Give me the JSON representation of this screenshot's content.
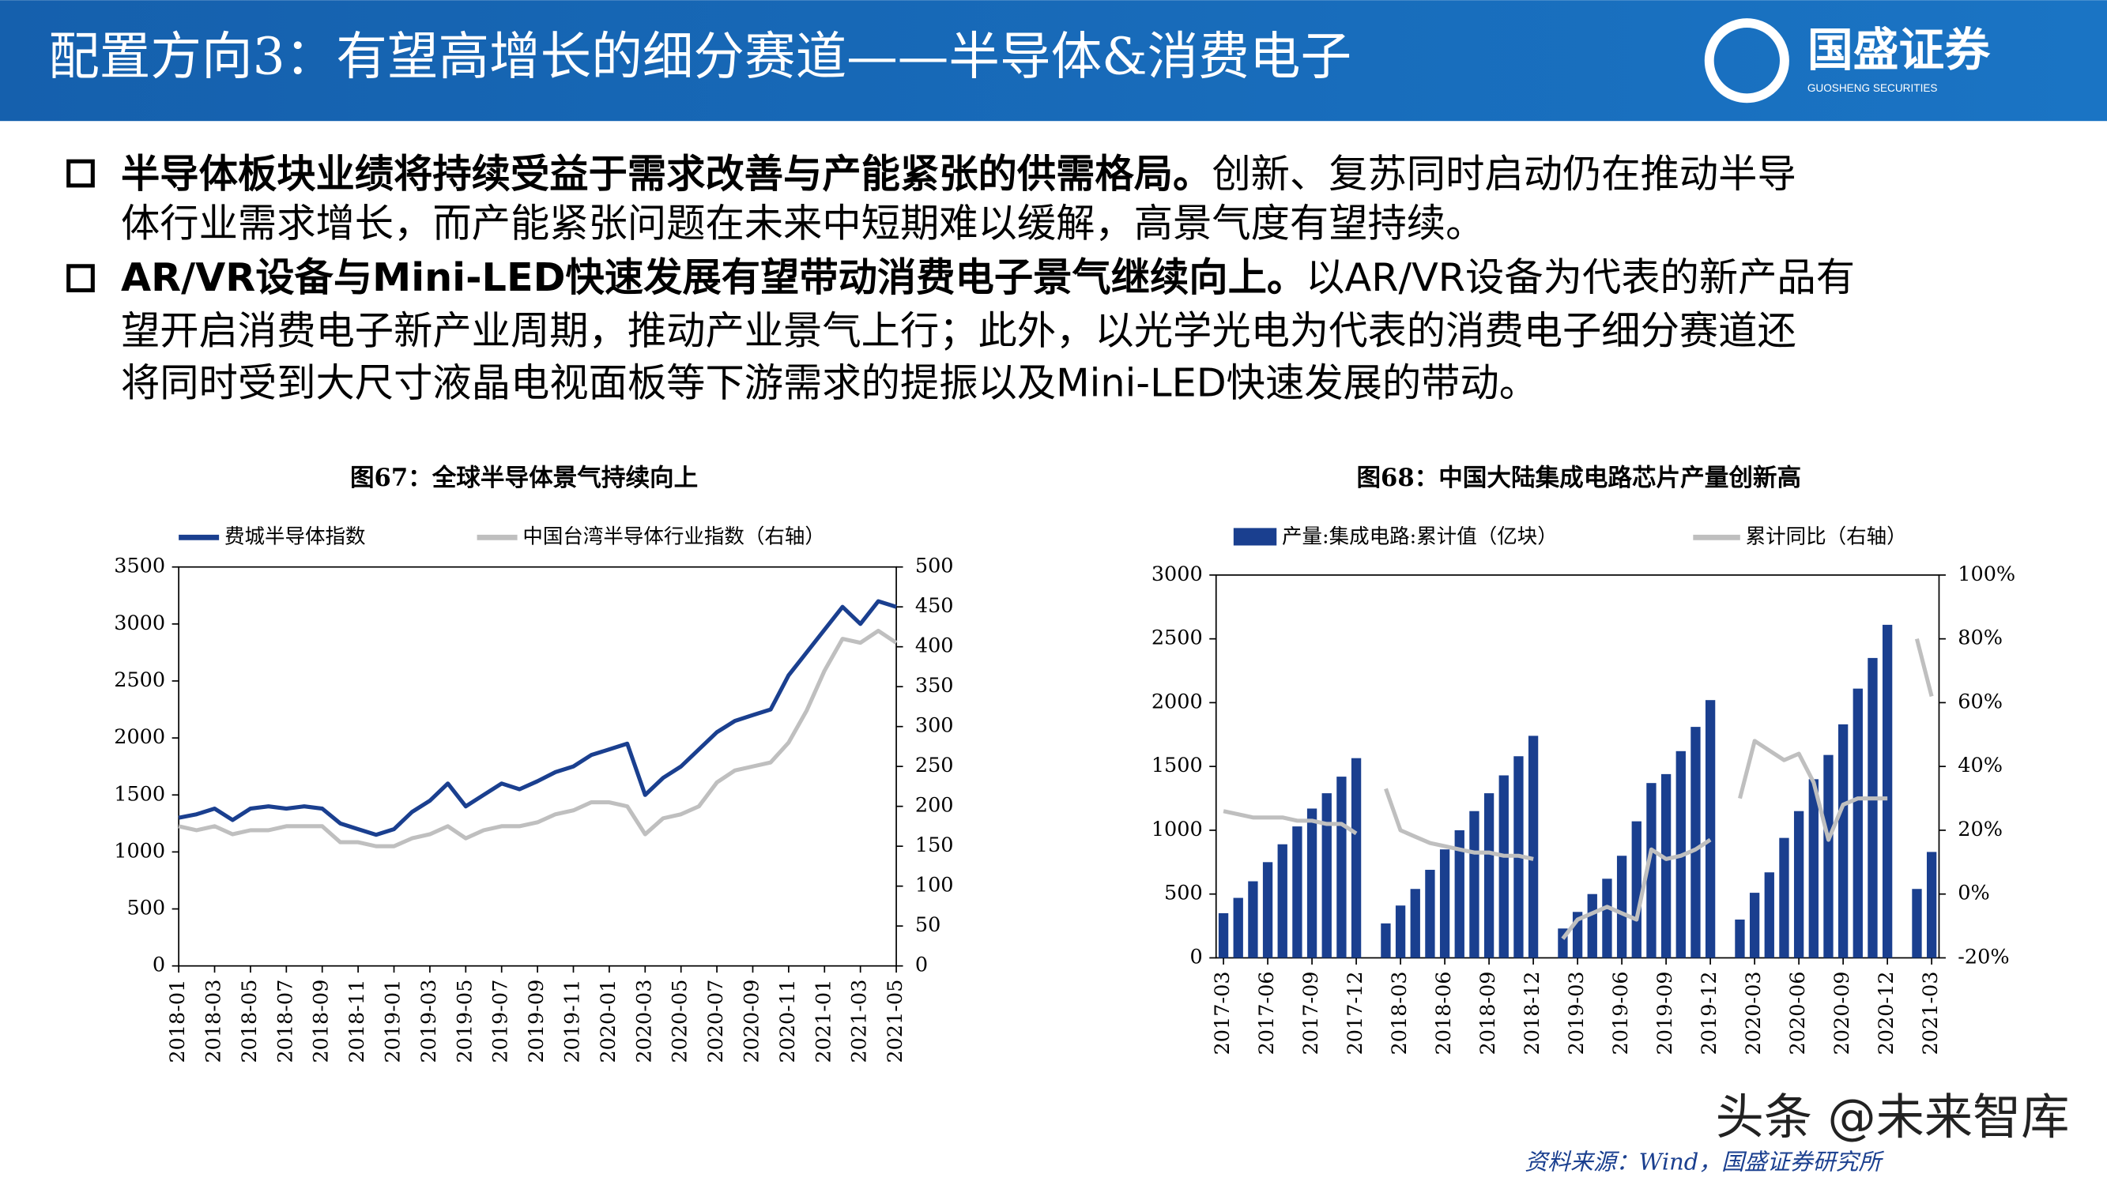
{
  "header": {
    "title": "配置方向3：有望高增长的细分赛道——半导体&消费电子",
    "logo": "国盛证券",
    "logo_en": "GUOSHENG SECURITIES"
  },
  "bullets": [
    {
      "lead": "半导体板块业绩将持续受益于需求改善与产能紧张的供需格局。",
      "lines": [
        "创新、复苏同时启动仍在推动半导",
        "体行业需求增长，而产能紧张问题在未来中短期难以缓解，高景气度有望持续。"
      ]
    },
    {
      "lead": "AR/VR设备与Mini-LED快速发展有望带动消费电子景气继续向上。",
      "lines": [
        "以AR/VR设备为代表的新产品有",
        "望开启消费电子新产业周期，推动产业景气上行；此外，以光学光电为代表的消费电子细分赛道还",
        "将同时受到大尺寸液晶电视面板等下游需求的提振以及Mini-LED快速发展的带动。"
      ]
    }
  ],
  "chart_data": [
    {
      "type": "line",
      "title": "图67：全球半导体景气持续向上",
      "categories": [
        "2018-01",
        null,
        "2018-03",
        null,
        "2018-05",
        null,
        "2018-07",
        null,
        "2018-09",
        null,
        "2018-11",
        null,
        "2019-01",
        null,
        "2019-03",
        null,
        "2019-05",
        null,
        "2019-07",
        null,
        "2019-09",
        null,
        "2019-11",
        null,
        "2020-01",
        null,
        "2020-03",
        null,
        "2020-05",
        null,
        "2020-07",
        null,
        "2020-09",
        null,
        "2020-11",
        null,
        "2021-01",
        null,
        "2021-03",
        null,
        "2021-05"
      ],
      "series": [
        {
          "name": "费城半导体指数",
          "color": "#1a3f8f",
          "values": [
            1300,
            1330,
            1380,
            1280,
            1380,
            1400,
            1380,
            1400,
            1380,
            1250,
            1200,
            1150,
            1200,
            1350,
            1450,
            1600,
            1400,
            1500,
            1600,
            1550,
            1620,
            1700,
            1750,
            1850,
            1900,
            1950,
            1500,
            1650,
            1750,
            1900,
            2050,
            2150,
            2200,
            2250,
            2550,
            2750,
            2950,
            3150,
            3000,
            3200,
            3150
          ]
        },
        {
          "name": "中国台湾半导体行业指数（右轴）",
          "color": "#bfbfbf",
          "axis": "y2",
          "values": [
            175,
            170,
            175,
            165,
            170,
            170,
            175,
            175,
            175,
            155,
            155,
            150,
            150,
            160,
            165,
            175,
            160,
            170,
            175,
            175,
            180,
            190,
            195,
            205,
            205,
            200,
            165,
            185,
            190,
            200,
            230,
            245,
            250,
            255,
            280,
            320,
            370,
            410,
            405,
            420,
            405
          ]
        }
      ],
      "ylim": [
        0,
        3500
      ],
      "yticks": [
        0,
        500,
        1000,
        1500,
        2000,
        2500,
        3000,
        3500
      ],
      "y2lim": [
        0,
        500
      ],
      "y2ticks": [
        0,
        50,
        100,
        150,
        200,
        250,
        300,
        350,
        400,
        450,
        500
      ]
    },
    {
      "type": "bar",
      "title": "图68：中国大陆集成电路芯片产量创新高",
      "categories": [
        "2017-03",
        null,
        null,
        "2017-06",
        null,
        null,
        "2017-09",
        null,
        null,
        "2017-12",
        null,
        null,
        "2018-03",
        null,
        null,
        "2018-06",
        null,
        null,
        "2018-09",
        null,
        null,
        "2018-12",
        null,
        null,
        "2019-03",
        null,
        null,
        "2019-06",
        null,
        null,
        "2019-09",
        null,
        null,
        "2019-12",
        null,
        null,
        "2020-03",
        null,
        null,
        "2020-06",
        null,
        null,
        "2020-09",
        null,
        null,
        "2020-12",
        null,
        null,
        "2021-03"
      ],
      "series": [
        {
          "name": "产量:集成电路:累计值（亿块）",
          "type": "bar",
          "color": "#1a3f8f",
          "values": [
            350,
            470,
            600,
            750,
            890,
            1030,
            1170,
            1290,
            1420,
            1565,
            null,
            270,
            410,
            540,
            690,
            850,
            1000,
            1150,
            1290,
            1430,
            1580,
            1740,
            null,
            230,
            360,
            500,
            620,
            800,
            1070,
            1370,
            1440,
            1620,
            1810,
            2020,
            null,
            300,
            510,
            670,
            940,
            1150,
            1400,
            1590,
            1830,
            2110,
            2350,
            2610,
            null,
            540,
            830
          ]
        },
        {
          "name": "累计同比（右轴）",
          "type": "line",
          "color": "#bfbfbf",
          "axis": "y2",
          "values": [
            26,
            25,
            24,
            24,
            24,
            23,
            23,
            22,
            22,
            19,
            null,
            33,
            20,
            18,
            16,
            15,
            14,
            13,
            13,
            12,
            12,
            11,
            null,
            -14,
            -8,
            -6,
            -4,
            -6,
            -8,
            14,
            11,
            12,
            14,
            17,
            null,
            30,
            48,
            45,
            42,
            44,
            35,
            17,
            28,
            30,
            30,
            30,
            null,
            80,
            62
          ]
        }
      ],
      "ylim": [
        0,
        3000
      ],
      "yticks": [
        0,
        500,
        1000,
        1500,
        2000,
        2500,
        3000
      ],
      "y2lim": [
        -20,
        100
      ],
      "y2ticks": [
        {
          "value": -20,
          "label": "-20%"
        },
        {
          "value": 0,
          "label": "0%"
        },
        {
          "value": 20,
          "label": "20%"
        },
        {
          "value": 40,
          "label": "40%"
        },
        {
          "value": 60,
          "label": "60%"
        },
        {
          "value": 80,
          "label": "80%"
        },
        {
          "value": 100,
          "label": "100%"
        }
      ]
    }
  ],
  "source": "资料来源：Wind，国盛证券研究所",
  "watermark": "头条 @未来智库"
}
